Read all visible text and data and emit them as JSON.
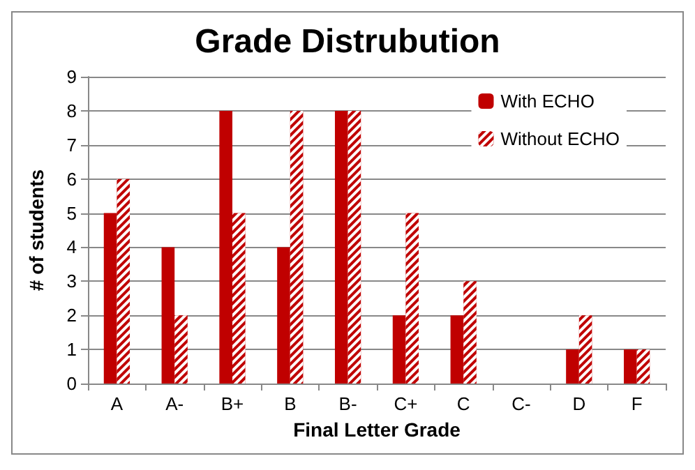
{
  "chart_data": {
    "type": "bar",
    "title": "Grade Distrubution",
    "xlabel": "Final Letter Grade",
    "ylabel": "# of students",
    "categories": [
      "A",
      "A-",
      "B+",
      "B",
      "B-",
      "C+",
      "C",
      "C-",
      "D",
      "F"
    ],
    "series": [
      {
        "name": "With ECHO",
        "color": "#c00000",
        "values": [
          5,
          4,
          8,
          4,
          8,
          2,
          2,
          0,
          1,
          1
        ]
      },
      {
        "name": "Without ECHO",
        "color": "#c00000",
        "values": [
          6,
          2,
          5,
          8,
          8,
          5,
          3,
          0,
          2,
          1
        ]
      }
    ],
    "ylim": [
      0,
      9
    ],
    "yticks": [
      0,
      1,
      2,
      3,
      4,
      5,
      6,
      7,
      8,
      9
    ],
    "grid": "y",
    "legend": "top right"
  }
}
